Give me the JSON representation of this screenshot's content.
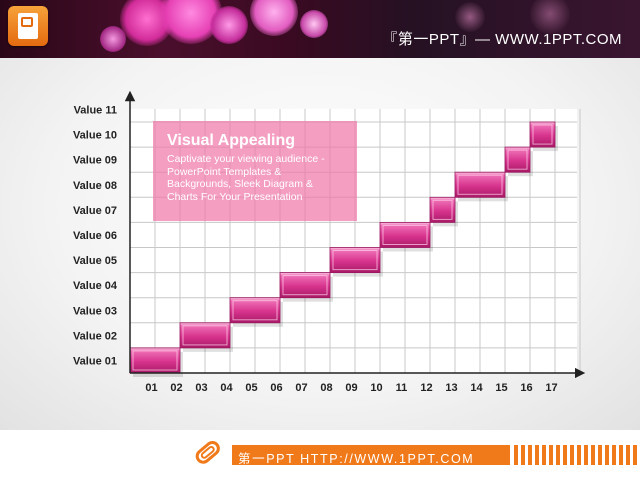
{
  "header": {
    "title": "『第一PPT』— WWW.1PPT.COM",
    "logo_icon": "powerpoint-file-icon"
  },
  "text_box": {
    "title": "Visual Appealing",
    "body": "Captivate your viewing audience - PowerPoint Templates & Backgrounds, Sleek Diagram & Charts For Your Presentation"
  },
  "footer": {
    "text": "第一PPT HTTP://WWW.1PPT.COM",
    "icon": "paperclip-icon"
  },
  "colors": {
    "accent": "#e0409a",
    "accent_dark": "#b81d6f",
    "footer_orange": "#f07a1a",
    "text_box": "#f078aa"
  },
  "chart_data": {
    "type": "bar",
    "subtype": "staircase",
    "categories": [
      "01",
      "02",
      "03",
      "04",
      "05",
      "06",
      "07",
      "08",
      "09",
      "10",
      "11",
      "12",
      "13",
      "14",
      "15",
      "16",
      "17"
    ],
    "y_categories": [
      "Value 01",
      "Value 02",
      "Value 03",
      "Value 04",
      "Value 05",
      "Value 06",
      "Value 07",
      "Value 08",
      "Value 09",
      "Value 10",
      "Value 11"
    ],
    "bars": [
      {
        "x_start": 1,
        "x_end": 2,
        "level": 1
      },
      {
        "x_start": 3,
        "x_end": 4,
        "level": 2
      },
      {
        "x_start": 5,
        "x_end": 6,
        "level": 3
      },
      {
        "x_start": 7,
        "x_end": 8,
        "level": 4
      },
      {
        "x_start": 9,
        "x_end": 10,
        "level": 5
      },
      {
        "x_start": 11,
        "x_end": 12,
        "level": 6
      },
      {
        "x_start": 13,
        "x_end": 13,
        "level": 7
      },
      {
        "x_start": 14,
        "x_end": 15,
        "level": 8
      },
      {
        "x_start": 16,
        "x_end": 16,
        "level": 9
      },
      {
        "x_start": 17,
        "x_end": 17,
        "level": 10
      }
    ],
    "grid": true,
    "title": "",
    "xlabel": "",
    "ylabel": ""
  }
}
